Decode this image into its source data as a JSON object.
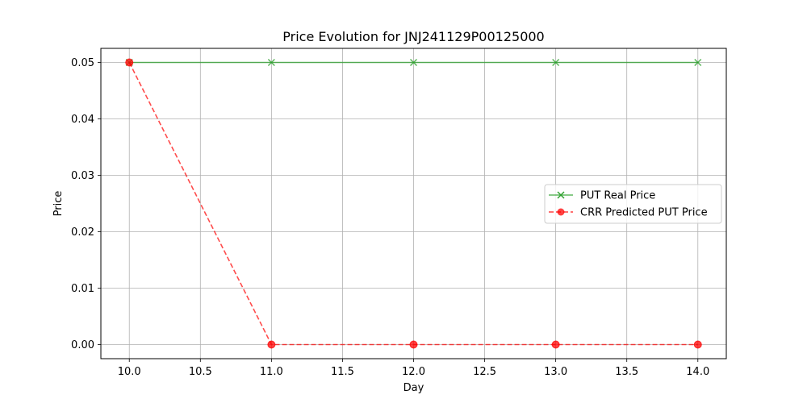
{
  "chart_data": {
    "type": "line",
    "title": "Price Evolution for JNJ241129P00125000",
    "xlabel": "Day",
    "ylabel": "Price",
    "xlim": [
      9.8,
      14.2
    ],
    "ylim": [
      -0.0025,
      0.0525
    ],
    "x_ticks": [
      10.0,
      10.5,
      11.0,
      11.5,
      12.0,
      12.5,
      13.0,
      13.5,
      14.0
    ],
    "x_tick_labels": [
      "10.0",
      "10.5",
      "11.0",
      "11.5",
      "12.0",
      "12.5",
      "13.0",
      "13.5",
      "14.0"
    ],
    "y_ticks": [
      0.0,
      0.01,
      0.02,
      0.03,
      0.04,
      0.05
    ],
    "y_tick_labels": [
      "0.00",
      "0.01",
      "0.02",
      "0.03",
      "0.04",
      "0.05"
    ],
    "grid": true,
    "legend_position": "center-right",
    "series": [
      {
        "name": "PUT Real Price",
        "x": [
          10,
          11,
          12,
          13,
          14
        ],
        "values": [
          0.05,
          0.05,
          0.05,
          0.05,
          0.05
        ],
        "color": "#2ca02c",
        "line_style": "solid",
        "marker": "x"
      },
      {
        "name": "CRR Predicted PUT Price",
        "x": [
          10,
          11,
          12,
          13,
          14
        ],
        "values": [
          0.05,
          0.0,
          0.0,
          0.0,
          0.0
        ],
        "color": "#ff0000",
        "line_style": "dashed",
        "marker": "o"
      }
    ]
  }
}
